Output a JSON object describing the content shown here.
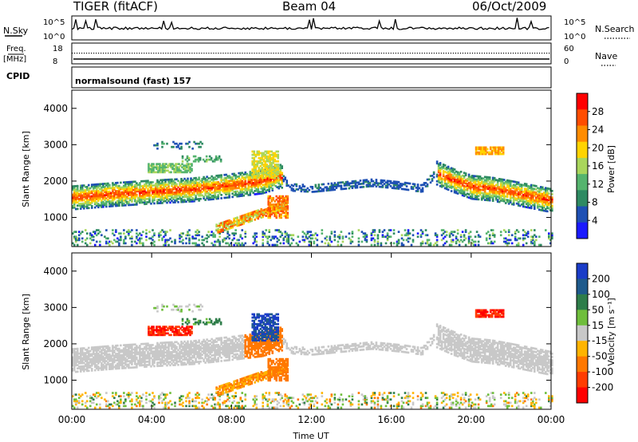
{
  "header": {
    "radar": "TIGER (fitACF)",
    "beam": "Beam 04",
    "date": "06/Oct/2009"
  },
  "top_panels": {
    "nsky_label": "N.Sky",
    "nsky_ticks": [
      "10^5",
      "10^0"
    ],
    "nsearch_label": "N.Search",
    "nsearch_ticks": [
      "10^5",
      "10^0"
    ],
    "freq_label": "Freq.",
    "freq_unit": "[MHz]",
    "freq_ticks": [
      "18",
      "8"
    ],
    "nave_label": "Nave",
    "nave_ticks": [
      "60",
      "0"
    ],
    "cpid_label": "CPID",
    "cpid_text": "normalsound (fast) 157"
  },
  "chart_data": [
    {
      "type": "heatmap",
      "title": "",
      "xlabel": "Time UT",
      "ylabel": "Slant Range [km]",
      "x_ticks": [
        "00:00",
        "04:00",
        "08:00",
        "12:00",
        "16:00",
        "20:00",
        "00:00"
      ],
      "xlim_hours": [
        0,
        24
      ],
      "ylim": [
        200,
        4500
      ],
      "y_ticks": [
        1000,
        2000,
        3000,
        4000
      ],
      "colorbar": {
        "label": "Power [dB]",
        "ticks": [
          4,
          8,
          12,
          16,
          20,
          24,
          28
        ],
        "range": [
          0,
          32
        ],
        "colors": [
          "#1a1aff",
          "#1e50b4",
          "#2e8a62",
          "#55b46e",
          "#a9d65c",
          "#ffd400",
          "#ff8c00",
          "#ff4d00",
          "#ff0000"
        ]
      },
      "features": [
        {
          "name": "main band",
          "t_start": 0.0,
          "t_end": 10.4,
          "range_start_km": 1550,
          "range_end_km": 2250,
          "peak_power_db": 28
        },
        {
          "name": "lower band",
          "t_start": 7.2,
          "t_end": 10.8,
          "range_start_km": 700,
          "range_end_km": 1500,
          "peak_power_db": 26
        },
        {
          "name": "weak midday band",
          "t_start": 10.5,
          "t_end": 18.3,
          "range_start_km": 1700,
          "range_end_km": 2000,
          "peak_power_db": 6
        },
        {
          "name": "evening band",
          "t_start": 18.2,
          "t_end": 24.0,
          "range_start_km": 2200,
          "range_end_km": 1500,
          "peak_power_db": 26
        },
        {
          "name": "upper patch",
          "t_start": 20.2,
          "t_end": 21.6,
          "range_start_km": 2850,
          "range_end_km": 2850,
          "peak_power_db": 22
        }
      ]
    },
    {
      "type": "heatmap",
      "title": "",
      "xlabel": "Time UT",
      "ylabel": "Slant Range [km]",
      "x_ticks": [
        "00:00",
        "04:00",
        "08:00",
        "12:00",
        "16:00",
        "20:00",
        "00:00"
      ],
      "xlim_hours": [
        0,
        24
      ],
      "ylim": [
        200,
        4500
      ],
      "y_ticks": [
        1000,
        2000,
        3000,
        4000
      ],
      "colorbar": {
        "label": "Velocity [m s⁻¹]",
        "ticks": [
          200,
          100,
          50,
          15,
          -15,
          -50,
          -100,
          -200
        ],
        "colors": [
          "#1a3cc8",
          "#1e5a8c",
          "#2e7d4a",
          "#6fbe3c",
          "#c8c8c8",
          "#ffb400",
          "#ff7800",
          "#ff3c00",
          "#ff0000"
        ]
      },
      "features": [
        {
          "name": "ground scatter band",
          "t_start": 0.0,
          "t_end": 24.0,
          "velocity_ms": 0
        },
        {
          "name": "negative velocity patch",
          "t_start": 3.8,
          "t_end": 6.0,
          "range_start_km": 2250,
          "range_end_km": 2450,
          "velocity_ms": -200
        },
        {
          "name": "positive velocity patch",
          "t_start": 9.0,
          "t_end": 10.3,
          "range_start_km": 2100,
          "range_end_km": 2800,
          "velocity_ms": 200
        },
        {
          "name": "upper negative patch",
          "t_start": 20.2,
          "t_end": 21.6,
          "range_start_km": 2850,
          "range_end_km": 2850,
          "velocity_ms": -200
        }
      ]
    }
  ]
}
